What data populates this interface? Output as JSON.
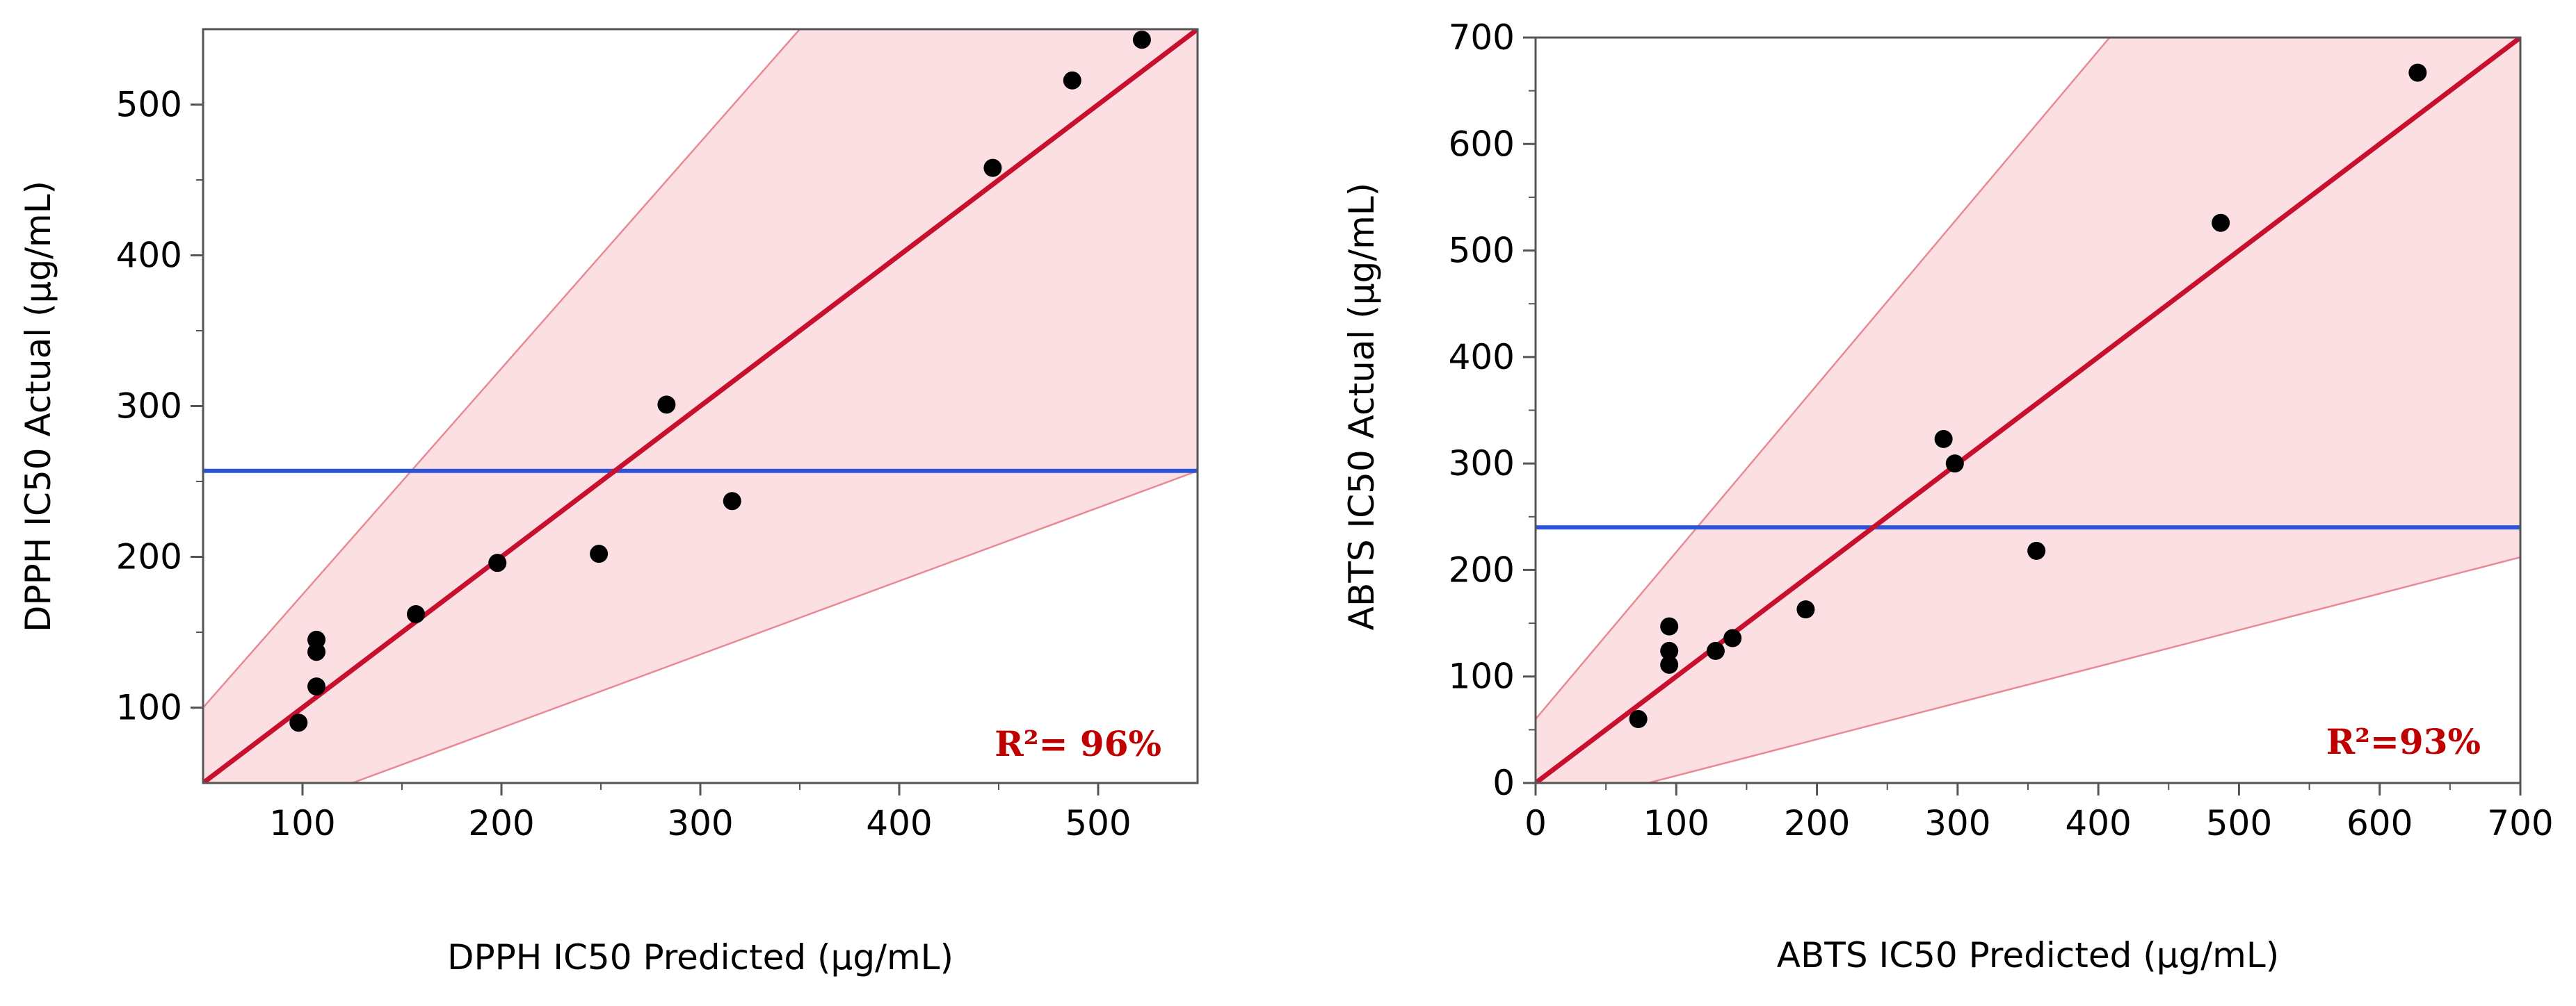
{
  "chart_data": [
    {
      "type": "scatter",
      "id": "dpph",
      "xlabel": "DPPH IC50 Predicted (µg/mL)",
      "ylabel": "DPPH IC50 Actual (µg/mL)",
      "xlim": [
        50,
        550
      ],
      "ylim": [
        50,
        550
      ],
      "xticks": [
        100,
        200,
        300,
        400,
        500
      ],
      "yticks": [
        100,
        200,
        300,
        400,
        500
      ],
      "points": [
        {
          "x": 98,
          "y": 90
        },
        {
          "x": 107,
          "y": 145
        },
        {
          "x": 107,
          "y": 137
        },
        {
          "x": 107,
          "y": 114
        },
        {
          "x": 157,
          "y": 162
        },
        {
          "x": 198,
          "y": 196
        },
        {
          "x": 249,
          "y": 202
        },
        {
          "x": 283,
          "y": 301
        },
        {
          "x": 316,
          "y": 237
        },
        {
          "x": 447,
          "y": 458
        },
        {
          "x": 487,
          "y": 516
        },
        {
          "x": 522,
          "y": 543
        }
      ],
      "mean_line": 257,
      "fit_line": {
        "slope": 1,
        "intercept": 0
      },
      "band": {
        "upper": [
          [
            50,
            100
          ],
          [
            350,
            550
          ]
        ],
        "lower": [
          [
            125,
            50
          ],
          [
            550,
            257
          ]
        ]
      },
      "annotation": "R²= 96%",
      "colors": {
        "fit": "#c8102e",
        "mean": "#2b54d6",
        "band": "#fcdfe3",
        "band_edge": "#e88a95",
        "points": "#000000"
      }
    },
    {
      "type": "scatter",
      "id": "abts",
      "xlabel": "ABTS IC50 Predicted (µg/mL)",
      "ylabel": "ABTS IC50 Actual (µg/mL)",
      "xlim": [
        0,
        700
      ],
      "ylim": [
        0,
        700
      ],
      "xticks": [
        0,
        100,
        200,
        300,
        400,
        500,
        600,
        700
      ],
      "yticks": [
        0,
        100,
        200,
        300,
        400,
        500,
        600,
        700
      ],
      "points": [
        {
          "x": 73,
          "y": 60
        },
        {
          "x": 95,
          "y": 147
        },
        {
          "x": 95,
          "y": 124
        },
        {
          "x": 95,
          "y": 111
        },
        {
          "x": 128,
          "y": 124
        },
        {
          "x": 140,
          "y": 136
        },
        {
          "x": 192,
          "y": 163
        },
        {
          "x": 290,
          "y": 323
        },
        {
          "x": 298,
          "y": 300
        },
        {
          "x": 356,
          "y": 218
        },
        {
          "x": 487,
          "y": 526
        },
        {
          "x": 627,
          "y": 667
        }
      ],
      "mean_line": 240,
      "fit_line": {
        "slope": 1,
        "intercept": 0
      },
      "band": {
        "upper": [
          [
            0,
            60
          ],
          [
            408,
            700
          ]
        ],
        "lower": [
          [
            80,
            0
          ],
          [
            700,
            212
          ]
        ]
      },
      "annotation": "R²=93%",
      "colors": {
        "fit": "#c8102e",
        "mean": "#2b54d6",
        "band": "#fcdfe3",
        "band_edge": "#e88a95",
        "points": "#000000"
      }
    }
  ]
}
